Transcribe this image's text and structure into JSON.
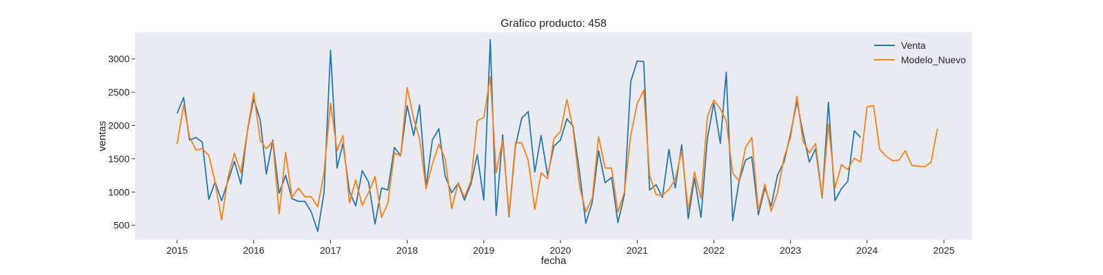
{
  "chart_data": {
    "type": "line",
    "title": "Grafico producto: 458",
    "xlabel": "fecha",
    "ylabel": "ventas",
    "x_ticks": [
      "2015",
      "2016",
      "2017",
      "2018",
      "2019",
      "2020",
      "2021",
      "2022",
      "2023",
      "2024",
      "2025"
    ],
    "y_ticks": [
      500,
      1000,
      1500,
      2000,
      2500,
      3000
    ],
    "xlim": [
      "2014-06-15",
      "2025-05-15"
    ],
    "ylim": [
      280,
      3400
    ],
    "grid": false,
    "legend": "top-right",
    "plot_background": "#eaeaf2",
    "series": [
      {
        "name": "Venta",
        "color": "#1f77b4",
        "start": "2015-01",
        "values": [
          2180,
          2420,
          1780,
          1820,
          1750,
          890,
          1150,
          870,
          1170,
          1460,
          1120,
          1900,
          2400,
          2080,
          1270,
          1780,
          980,
          1250,
          900,
          860,
          860,
          700,
          410,
          990,
          3130,
          1360,
          1730,
          1010,
          790,
          1320,
          1150,
          520,
          1060,
          1030,
          1670,
          1550,
          2300,
          1850,
          2310,
          1080,
          1780,
          1950,
          1240,
          990,
          1130,
          880,
          1120,
          1560,
          880,
          3290,
          650,
          1860,
          630,
          1690,
          2110,
          2210,
          1300,
          1850,
          1250,
          1690,
          1780,
          2100,
          1990,
          1300,
          530,
          850,
          1620,
          1140,
          1220,
          540,
          960,
          2660,
          2970,
          2960,
          1030,
          1110,
          920,
          1640,
          1060,
          1710,
          600,
          1210,
          620,
          1800,
          2340,
          1730,
          2800,
          570,
          1160,
          1480,
          1530,
          660,
          1060,
          790,
          1260,
          1450,
          1870,
          2360,
          1900,
          1450,
          1650,
          910,
          2350,
          870,
          1050,
          1160,
          1920,
          1820
        ]
      },
      {
        "name": "Modelo_Nuevo",
        "color": "#ff7f0e",
        "start": "2015-01",
        "values": [
          1720,
          2310,
          1830,
          1630,
          1650,
          1550,
          1150,
          580,
          1230,
          1580,
          1290,
          1900,
          2490,
          1780,
          1650,
          1760,
          670,
          1600,
          920,
          1060,
          930,
          930,
          780,
          1290,
          2340,
          1620,
          1850,
          840,
          1180,
          800,
          990,
          1230,
          620,
          830,
          1590,
          1540,
          2570,
          2100,
          1800,
          1050,
          1420,
          1720,
          1500,
          750,
          1140,
          920,
          1170,
          2070,
          2120,
          2730,
          1290,
          1790,
          660,
          1740,
          1740,
          1470,
          740,
          1290,
          1200,
          1800,
          1910,
          2390,
          1960,
          1090,
          700,
          910,
          1830,
          1360,
          1360,
          700,
          1000,
          1850,
          2330,
          2530,
          1250,
          960,
          950,
          1040,
          1190,
          1620,
          730,
          1300,
          900,
          2130,
          2380,
          2250,
          2070,
          1280,
          1170,
          1670,
          1820,
          720,
          1120,
          710,
          1000,
          1510,
          1820,
          2440,
          1770,
          1590,
          1730,
          920,
          2020,
          1060,
          1410,
          1340,
          1510,
          1450,
          2280,
          2300,
          1640,
          1540,
          1470,
          1480,
          1620,
          1400,
          1390,
          1380,
          1450,
          1950
        ]
      }
    ]
  }
}
